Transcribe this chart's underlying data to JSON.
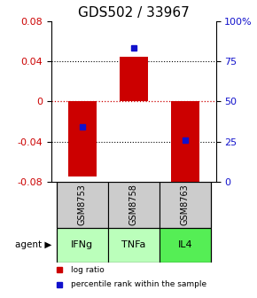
{
  "title": "GDS502 / 33967",
  "samples": [
    "GSM8753",
    "GSM8758",
    "GSM8763"
  ],
  "agents": [
    "IFNg",
    "TNFa",
    "IL4"
  ],
  "log_ratios": [
    -0.075,
    0.044,
    -0.085
  ],
  "percentile_ranks": [
    34,
    83,
    26
  ],
  "ylim_lr": [
    -0.08,
    0.08
  ],
  "ylim_pct": [
    0,
    100
  ],
  "yticks_left": [
    -0.08,
    -0.04,
    0,
    0.04,
    0.08
  ],
  "yticks_right": [
    0,
    25,
    50,
    75,
    100
  ],
  "bar_color": "#cc0000",
  "dot_color": "#1111cc",
  "zero_line_color": "#cc0000",
  "grid_color": "#333333",
  "agent_bg_colors": [
    "#bbffbb",
    "#bbffbb",
    "#55ee55"
  ],
  "sample_bg_color": "#cccccc",
  "legend_bar_label": "log ratio",
  "legend_dot_label": "percentile rank within the sample",
  "agent_label": "agent",
  "title_fontsize": 11,
  "tick_fontsize": 8,
  "bar_width": 0.55
}
